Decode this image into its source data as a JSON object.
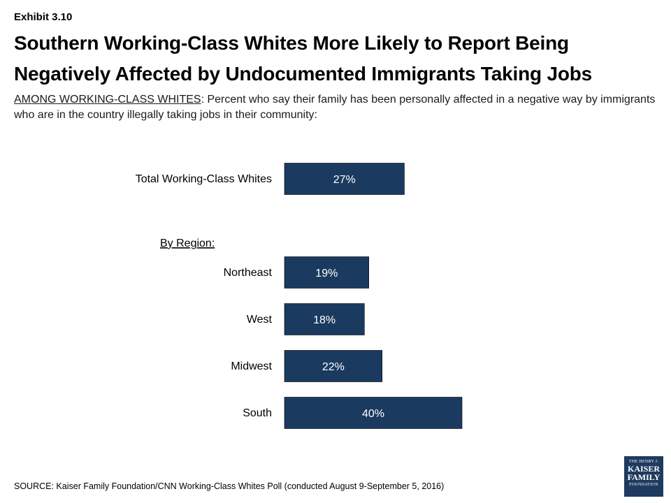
{
  "exhibit_label": "Exhibit 3.10",
  "title": "Southern Working-Class Whites More Likely to Report Being Negatively Affected by Undocumented Immigrants Taking Jobs",
  "subtitle_lead": "AMONG WORKING-CLASS WHITES",
  "subtitle_rest": ": Percent who say their family has been personally affected in a negative way by immigrants who are in the country illegally taking jobs in their community:",
  "source": "SOURCE: Kaiser Family Foundation/CNN Working-Class Whites Poll (conducted August 9-September 5, 2016)",
  "logo": {
    "line1": "THE HENRY J.",
    "line2": "KAISER",
    "line3": "FAMILY",
    "line4": "FOUNDATION"
  },
  "colors": {
    "bar_fill": "#1b3a5f",
    "bar_text": "#ffffff"
  },
  "chart_data": {
    "type": "bar",
    "orientation": "horizontal",
    "group_label": "By Region:",
    "categories": [
      "Total Working-Class Whites",
      "Northeast",
      "West",
      "Midwest",
      "South"
    ],
    "values": [
      27,
      19,
      18,
      22,
      40
    ],
    "value_labels": [
      "27%",
      "19%",
      "18%",
      "22%",
      "40%"
    ],
    "unit": "%",
    "grid": false
  }
}
